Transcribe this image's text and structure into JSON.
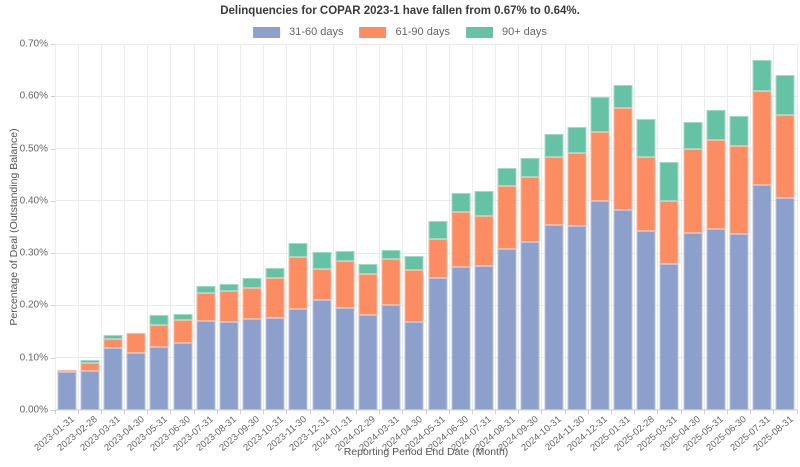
{
  "title": "Delinquencies for COPAR 2023-1 have fallen from 0.67% to 0.64%.",
  "chart_data": {
    "type": "bar",
    "stacked": true,
    "title": "Delinquencies for COPAR 2023-1 have fallen from 0.67% to 0.64%.",
    "xlabel": "Reporting Period End Date (Month)",
    "ylabel": "Percentage of Deal (Outstanding Balance)",
    "ylim": [
      0,
      0.7
    ],
    "grid": true,
    "legend_position": "top-center",
    "y_ticks": [
      {
        "value": 0.0,
        "label": "0.00%"
      },
      {
        "value": 0.1,
        "label": "0.10%"
      },
      {
        "value": 0.2,
        "label": "0.20%"
      },
      {
        "value": 0.3,
        "label": "0.30%"
      },
      {
        "value": 0.4,
        "label": "0.40%"
      },
      {
        "value": 0.5,
        "label": "0.50%"
      },
      {
        "value": 0.6,
        "label": "0.60%"
      },
      {
        "value": 0.7,
        "label": "0.70%"
      }
    ],
    "categories": [
      "2023-01-31",
      "2023-02-28",
      "2023-03-31",
      "2023-04-30",
      "2023-05-31",
      "2023-06-30",
      "2023-07-31",
      "2023-08-31",
      "2023-09-30",
      "2023-10-31",
      "2023-11-30",
      "2023-12-31",
      "2024-01-31",
      "2024-02-29",
      "2024-03-31",
      "2024-04-30",
      "2024-05-31",
      "2024-06-30",
      "2024-07-31",
      "2024-08-31",
      "2024-09-30",
      "2024-10-31",
      "2024-11-30",
      "2024-12-31",
      "2025-01-31",
      "2025-02-28",
      "2025-03-31",
      "2025-04-30",
      "2025-05-31",
      "2025-06-30",
      "2025-07-31",
      "2025-08-31"
    ],
    "series": [
      {
        "name": "31-60 days",
        "color": "#8da0cb",
        "values": [
          0.072,
          0.075,
          0.119,
          0.11,
          0.121,
          0.129,
          0.17,
          0.169,
          0.175,
          0.176,
          0.194,
          0.211,
          0.196,
          0.181,
          0.2,
          0.168,
          0.253,
          0.274,
          0.276,
          0.308,
          0.322,
          0.353,
          0.351,
          0.399,
          0.383,
          0.343,
          0.28,
          0.338,
          0.347,
          0.336,
          0.43,
          0.405
        ]
      },
      {
        "name": "61-90 days",
        "color": "#fc8d62",
        "values": [
          0.005,
          0.015,
          0.017,
          0.037,
          0.041,
          0.043,
          0.054,
          0.059,
          0.058,
          0.077,
          0.098,
          0.059,
          0.089,
          0.079,
          0.088,
          0.1,
          0.075,
          0.105,
          0.096,
          0.12,
          0.124,
          0.131,
          0.141,
          0.133,
          0.194,
          0.14,
          0.119,
          0.161,
          0.169,
          0.169,
          0.18,
          0.16
        ]
      },
      {
        "name": "90+ days",
        "color": "#66c2a5",
        "values": [
          0.0,
          0.005,
          0.008,
          0.0,
          0.019,
          0.012,
          0.013,
          0.013,
          0.02,
          0.018,
          0.027,
          0.033,
          0.02,
          0.02,
          0.018,
          0.026,
          0.034,
          0.036,
          0.046,
          0.035,
          0.036,
          0.043,
          0.05,
          0.067,
          0.045,
          0.073,
          0.075,
          0.052,
          0.058,
          0.057,
          0.06,
          0.075
        ]
      }
    ],
    "totals_note": {
      "first_highlight": "0.67%",
      "last_highlight": "0.64%"
    }
  },
  "colors": {
    "grid": "#e9e9e9",
    "axis_text": "#666666",
    "axis_title_text": "#555555",
    "title_text": "#3b3b3b",
    "background": "#ffffff"
  }
}
